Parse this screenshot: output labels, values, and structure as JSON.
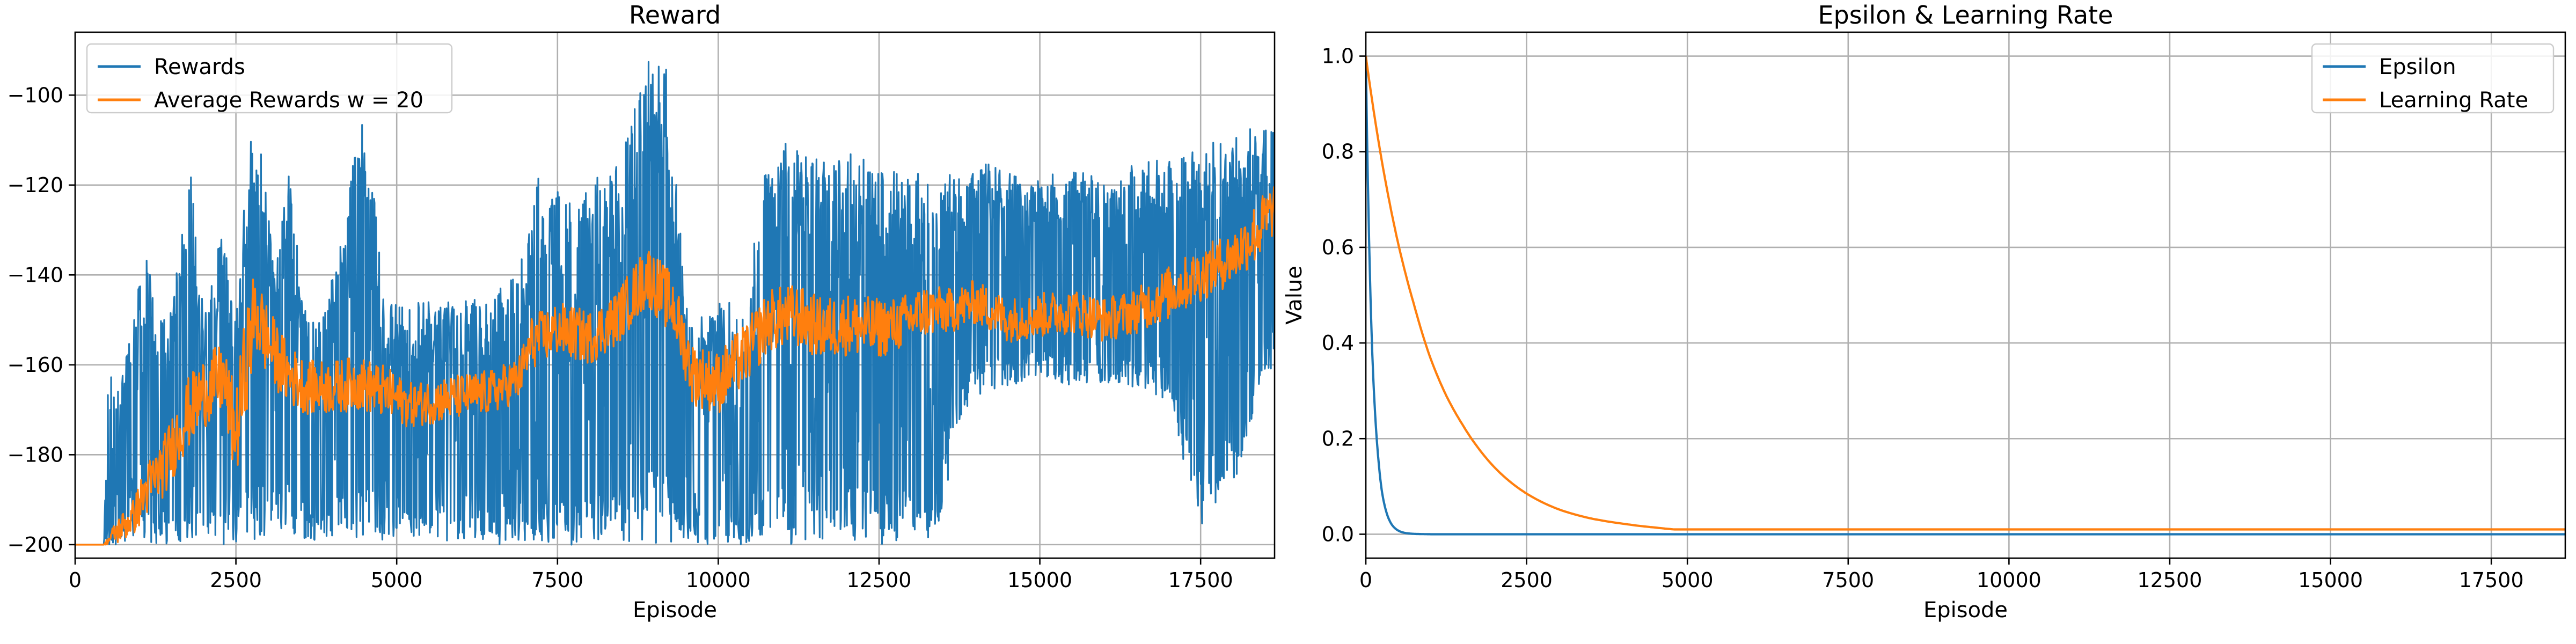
{
  "chart_data": [
    {
      "type": "line",
      "title": "Reward",
      "xlabel": "Episode",
      "ylabel": "",
      "xlim": [
        0,
        18650
      ],
      "ylim": [
        -203,
        -86
      ],
      "xticks": [
        0,
        2500,
        5000,
        7500,
        10000,
        12500,
        15000,
        17500
      ],
      "yticks": [
        -200,
        -180,
        -160,
        -140,
        -120,
        -100
      ],
      "grid": true,
      "legend_position": "top-left",
      "series": [
        {
          "name": "Rewards",
          "color": "#1f77b4",
          "style": "noisy-envelope",
          "note_values": "per-episode rewards; envelope [x, low, high] sampled from figure",
          "envelope": [
            [
              0,
              -200,
              -200
            ],
            [
              450,
              -200,
              -200
            ],
            [
              500,
              -200,
              -162
            ],
            [
              700,
              -200,
              -164
            ],
            [
              900,
              -200,
              -150
            ],
            [
              1100,
              -200,
              -132
            ],
            [
              1300,
              -200,
              -150
            ],
            [
              1500,
              -200,
              -148
            ],
            [
              1800,
              -200,
              -115
            ],
            [
              2000,
              -200,
              -150
            ],
            [
              2300,
              -200,
              -125
            ],
            [
              2500,
              -200,
              -148
            ],
            [
              2700,
              -200,
              -110
            ],
            [
              2900,
              -198,
              -112
            ],
            [
              3100,
              -199,
              -140
            ],
            [
              3300,
              -198,
              -115
            ],
            [
              3600,
              -199,
              -148
            ],
            [
              3900,
              -199,
              -148
            ],
            [
              4200,
              -198,
              -125
            ],
            [
              4500,
              -199,
              -100
            ],
            [
              4800,
              -199,
              -145
            ],
            [
              5200,
              -200,
              -146
            ],
            [
              5600,
              -200,
              -146
            ],
            [
              6000,
              -200,
              -145
            ],
            [
              6500,
              -200,
              -145
            ],
            [
              7000,
              -200,
              -135
            ],
            [
              7200,
              -199,
              -118
            ],
            [
              7500,
              -200,
              -120
            ],
            [
              7800,
              -200,
              -125
            ],
            [
              8100,
              -200,
              -118
            ],
            [
              8500,
              -200,
              -112
            ],
            [
              8900,
              -200,
              -90
            ],
            [
              9200,
              -200,
              -92
            ],
            [
              9500,
              -199,
              -145
            ],
            [
              9800,
              -200,
              -150
            ],
            [
              10100,
              -200,
              -145
            ],
            [
              10400,
              -200,
              -150
            ],
            [
              10700,
              -200,
              -115
            ],
            [
              11000,
              -200,
              -110
            ],
            [
              11400,
              -200,
              -112
            ],
            [
              11800,
              -200,
              -115
            ],
            [
              12200,
              -200,
              -112
            ],
            [
              12600,
              -200,
              -115
            ],
            [
              13000,
              -200,
              -118
            ],
            [
              13400,
              -198,
              -115
            ],
            [
              13800,
              -170,
              -118
            ],
            [
              14200,
              -166,
              -115
            ],
            [
              14600,
              -165,
              -118
            ],
            [
              15000,
              -162,
              -118
            ],
            [
              15500,
              -165,
              -117
            ],
            [
              16000,
              -164,
              -118
            ],
            [
              16500,
              -165,
              -115
            ],
            [
              17000,
              -168,
              -113
            ],
            [
              17300,
              -185,
              -112
            ],
            [
              17500,
              -196,
              -110
            ],
            [
              17800,
              -190,
              -108
            ],
            [
              18100,
              -185,
              -107
            ],
            [
              18400,
              -165,
              -107
            ],
            [
              18650,
              -160,
              -108
            ]
          ]
        },
        {
          "name": "Average Rewards w = 20",
          "color": "#ff7f0e",
          "style": "noisy-line",
          "note_values": "moving average; [x, mean, noise] sampled from figure",
          "points": [
            [
              0,
              -200,
              0
            ],
            [
              450,
              -200,
              0
            ],
            [
              650,
              -197,
              3
            ],
            [
              900,
              -194,
              4
            ],
            [
              1100,
              -188,
              6
            ],
            [
              1400,
              -182,
              7
            ],
            [
              1700,
              -172,
              8
            ],
            [
              2000,
              -166,
              8
            ],
            [
              2300,
              -163,
              8
            ],
            [
              2500,
              -176,
              10
            ],
            [
              2650,
              -160,
              12
            ],
            [
              2800,
              -148,
              10
            ],
            [
              3000,
              -155,
              8
            ],
            [
              3300,
              -162,
              7
            ],
            [
              3600,
              -165,
              6
            ],
            [
              4000,
              -165,
              6
            ],
            [
              4400,
              -164,
              6
            ],
            [
              4800,
              -166,
              6
            ],
            [
              5200,
              -169,
              5
            ],
            [
              5600,
              -168,
              5
            ],
            [
              6000,
              -167,
              5
            ],
            [
              6500,
              -166,
              5
            ],
            [
              6900,
              -163,
              5
            ],
            [
              7100,
              -155,
              6
            ],
            [
              7500,
              -152,
              6
            ],
            [
              8000,
              -154,
              6
            ],
            [
              8400,
              -150,
              6
            ],
            [
              8900,
              -140,
              7
            ],
            [
              9300,
              -147,
              7
            ],
            [
              9600,
              -162,
              7
            ],
            [
              10000,
              -164,
              7
            ],
            [
              10400,
              -158,
              7
            ],
            [
              10800,
              -150,
              7
            ],
            [
              11200,
              -149,
              7
            ],
            [
              11600,
              -152,
              7
            ],
            [
              12000,
              -151,
              7
            ],
            [
              12400,
              -152,
              7
            ],
            [
              12800,
              -151,
              6
            ],
            [
              13200,
              -148,
              6
            ],
            [
              13600,
              -148,
              5
            ],
            [
              14000,
              -146,
              5
            ],
            [
              14500,
              -150,
              5
            ],
            [
              15000,
              -149,
              5
            ],
            [
              15500,
              -148,
              5
            ],
            [
              16000,
              -150,
              5
            ],
            [
              16500,
              -148,
              5
            ],
            [
              17000,
              -144,
              6
            ],
            [
              17500,
              -140,
              6
            ],
            [
              18000,
              -136,
              6
            ],
            [
              18400,
              -130,
              7
            ],
            [
              18650,
              -125,
              6
            ]
          ]
        }
      ]
    },
    {
      "type": "line",
      "title": "Epsilon & Learning Rate",
      "xlabel": "Episode",
      "ylabel": "Value",
      "xlim": [
        0,
        18650
      ],
      "ylim": [
        -0.05,
        1.05
      ],
      "xticks": [
        0,
        2500,
        5000,
        7500,
        10000,
        12500,
        15000,
        17500
      ],
      "yticks": [
        0.0,
        0.2,
        0.4,
        0.6,
        0.8,
        1.0
      ],
      "grid": true,
      "legend_position": "top-right",
      "series": [
        {
          "name": "Epsilon",
          "color": "#1f77b4",
          "x": [
            0,
            50,
            100,
            150,
            200,
            250,
            300,
            400,
            500,
            600,
            800,
            1000,
            18650
          ],
          "y": [
            1.0,
            0.62,
            0.38,
            0.24,
            0.15,
            0.09,
            0.056,
            0.021,
            0.008,
            0.003,
            0.0005,
            0.0,
            0.0
          ]
        },
        {
          "name": "Learning Rate",
          "color": "#ff7f0e",
          "x": [
            0,
            250,
            500,
            750,
            1000,
            1250,
            1500,
            1750,
            2000,
            2500,
            3000,
            3500,
            4000,
            4500,
            4800,
            18650
          ],
          "y": [
            1.0,
            0.78,
            0.61,
            0.48,
            0.37,
            0.29,
            0.23,
            0.18,
            0.14,
            0.085,
            0.052,
            0.033,
            0.022,
            0.014,
            0.01,
            0.01
          ]
        }
      ]
    }
  ]
}
